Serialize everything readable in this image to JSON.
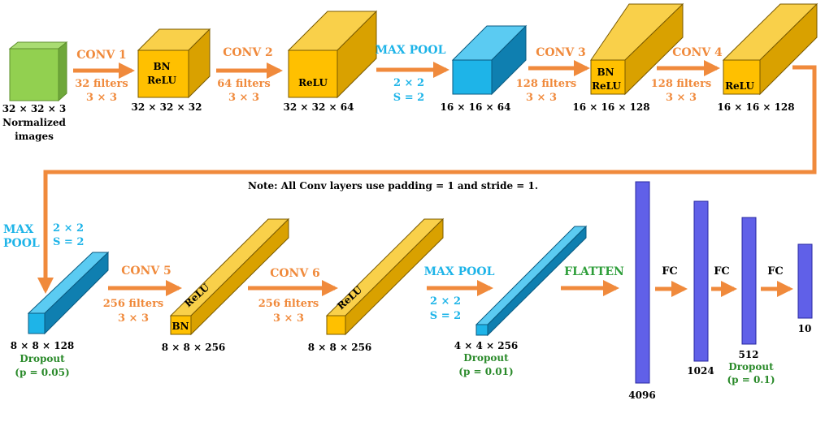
{
  "colors": {
    "orange": "#F08A3C",
    "blue_text": "#1EB4E8",
    "green_text": "#2A8A2A",
    "conv_front": "#FFC000",
    "conv_top": "#F9D04A",
    "conv_side": "#D9A100",
    "pool_front": "#1EB4E8",
    "pool_top": "#5BCBF2",
    "pool_side": "#0F7FB0",
    "input_front": "#92D050",
    "input_top": "#A9DC72",
    "input_side": "#6FA83A",
    "fc_fill": "#6060E8",
    "fc_stroke": "#2828A0"
  },
  "input": {
    "dims": "32 × 32 × 3",
    "label_line1": "Normalized",
    "label_line2": "images"
  },
  "conv1": {
    "op": "CONV 1",
    "filters": "32 filters",
    "kernel": "3 × 3",
    "inner1": "BN",
    "inner2": "ReLU",
    "dims": "32 × 32 × 32"
  },
  "conv2": {
    "op": "CONV 2",
    "filters": "64 filters",
    "kernel": "3 × 3",
    "inner": "ReLU",
    "dims": "32 × 32 × 64"
  },
  "pool1": {
    "op": "MAX POOL",
    "size": "2 × 2",
    "stride": "S = 2",
    "dims": "16 × 16 × 64"
  },
  "conv3": {
    "op": "CONV 3",
    "filters": "128 filters",
    "kernel": "3 × 3",
    "inner1": "BN",
    "inner2": "ReLU",
    "dims": "16 × 16 × 128"
  },
  "conv4": {
    "op": "CONV 4",
    "filters": "128 filters",
    "kernel": "3 × 3",
    "inner": "ReLU",
    "dims": "16 × 16 × 128"
  },
  "note": "Note: All Conv layers use padding = 1 and stride = 1.",
  "pool2": {
    "op_line1": "MAX",
    "op_line2": "POOL",
    "size": "2 × 2",
    "stride": "S = 2",
    "dims": "8 × 8 × 128",
    "dropout": "Dropout",
    "p": "(p = 0.05)"
  },
  "conv5": {
    "op": "CONV 5",
    "filters": "256 filters",
    "kernel": "3 × 3",
    "inner_relu": "ReLU",
    "inner_bn": "BN",
    "dims": "8 × 8 × 256"
  },
  "conv6": {
    "op": "CONV 6",
    "filters": "256 filters",
    "kernel": "3 × 3",
    "inner": "ReLU",
    "dims": "8 × 8 × 256"
  },
  "pool3": {
    "op": "MAX POOL",
    "size": "2 × 2",
    "stride": "S = 2",
    "dims": "4 × 4 × 256",
    "dropout": "Dropout",
    "p": "(p = 0.01)"
  },
  "flatten": {
    "op": "FLATTEN"
  },
  "fc": {
    "op1": "FC",
    "op2": "FC",
    "op3": "FC",
    "n1": "4096",
    "n2": "1024",
    "n3": "512",
    "n4": "10",
    "dropout": "Dropout",
    "p": "(p = 0.1)"
  }
}
